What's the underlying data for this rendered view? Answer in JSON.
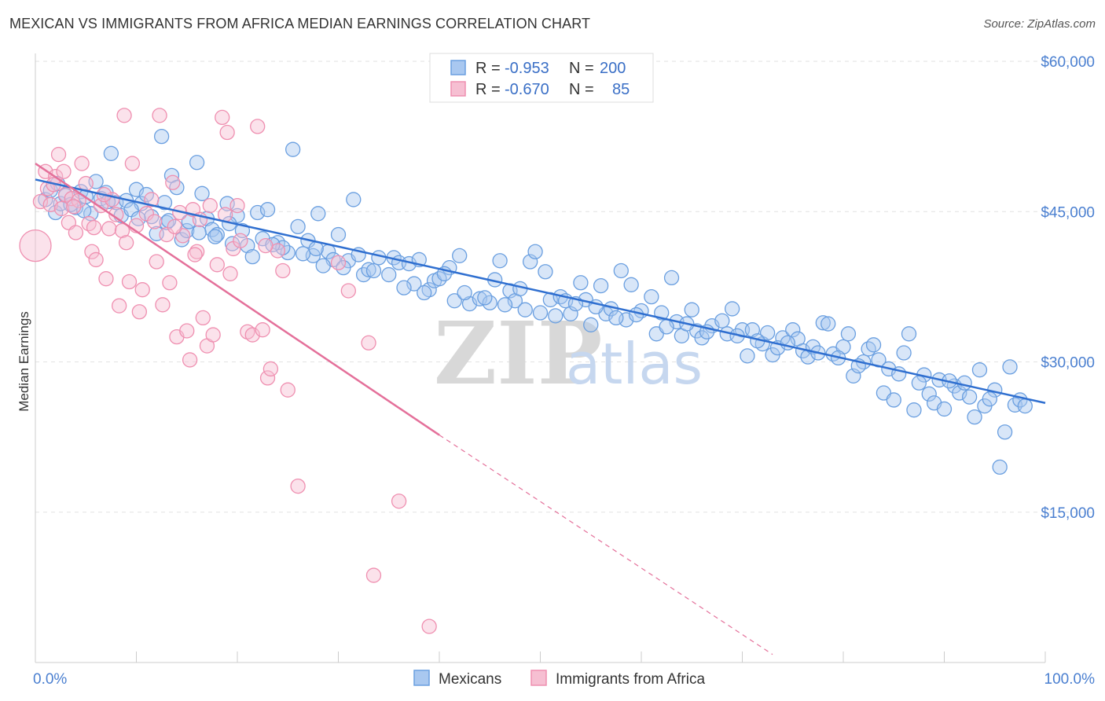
{
  "title": "MEXICAN VS IMMIGRANTS FROM AFRICA MEDIAN EARNINGS CORRELATION CHART",
  "source": "Source: ZipAtlas.com",
  "watermark": {
    "zip": "ZIP",
    "atlas": "atlas"
  },
  "colors": {
    "blue": "#6a9fe0",
    "blue_fill": "#a9c8f0",
    "blue_line": "#2f6fd0",
    "pink": "#ef8fb0",
    "pink_fill": "#f6bfd2",
    "pink_line": "#e4709a",
    "tick": "#4a7fd0"
  },
  "legend": {
    "rows": [
      {
        "r_label": "R =",
        "r_value": "-0.953",
        "n_label": "N =",
        "n_value": "200"
      },
      {
        "r_label": "R =",
        "r_value": "-0.670",
        "n_label": "N =",
        "n_value": "85"
      }
    ]
  },
  "bottom_legend": [
    "Mexicans",
    "Immigrants from Africa"
  ],
  "chart_data": {
    "type": "scatter",
    "title": "MEXICAN VS IMMIGRANTS FROM AFRICA MEDIAN EARNINGS CORRELATION CHART",
    "xlabel": "",
    "ylabel": "Median Earnings",
    "xlim": [
      0,
      100
    ],
    "ylim": [
      0,
      60000
    ],
    "x_tick_labels": [
      "0.0%",
      "100.0%"
    ],
    "y_ticks": [
      15000,
      30000,
      45000,
      60000
    ],
    "y_tick_labels": [
      "$15,000",
      "$30,000",
      "$45,000",
      "$60,000"
    ],
    "grid": true,
    "legend_position": "top-center",
    "series": [
      {
        "name": "Mexicans",
        "R": -0.953,
        "N": 200,
        "trend": {
          "x": [
            0,
            100
          ],
          "y": [
            48200,
            25900
          ]
        },
        "points": [
          [
            1,
            46200
          ],
          [
            1.5,
            47100
          ],
          [
            2,
            44900
          ],
          [
            2.5,
            45800
          ],
          [
            3,
            46600
          ],
          [
            4,
            45400
          ],
          [
            4.5,
            47000
          ],
          [
            5,
            46500
          ],
          [
            5.5,
            44800
          ],
          [
            6,
            48000
          ],
          [
            7,
            46900
          ],
          [
            7.5,
            50800
          ],
          [
            8,
            45900
          ],
          [
            8.5,
            44600
          ],
          [
            9,
            46100
          ],
          [
            10,
            47200
          ],
          [
            10.5,
            45800
          ],
          [
            11,
            46700
          ],
          [
            11.5,
            44500
          ],
          [
            12,
            42800
          ],
          [
            12.5,
            52500
          ],
          [
            13,
            43900
          ],
          [
            13.5,
            48600
          ],
          [
            14,
            47400
          ],
          [
            14.5,
            42200
          ],
          [
            15,
            43100
          ],
          [
            16,
            49900
          ],
          [
            16.5,
            46800
          ],
          [
            17,
            44300
          ],
          [
            17.5,
            43200
          ],
          [
            18,
            42700
          ],
          [
            19,
            45800
          ],
          [
            19.5,
            41800
          ],
          [
            20,
            44600
          ],
          [
            21,
            41600
          ],
          [
            22,
            44900
          ],
          [
            22.5,
            42300
          ],
          [
            23,
            45200
          ],
          [
            24,
            41900
          ],
          [
            25,
            40900
          ],
          [
            25.5,
            51200
          ],
          [
            26,
            43500
          ],
          [
            27,
            42100
          ],
          [
            27.5,
            40600
          ],
          [
            28,
            44800
          ],
          [
            29,
            41000
          ],
          [
            29.5,
            40200
          ],
          [
            30,
            42700
          ],
          [
            31,
            40100
          ],
          [
            31.5,
            46200
          ],
          [
            32,
            40700
          ],
          [
            32.5,
            38700
          ],
          [
            33,
            39200
          ],
          [
            34,
            40400
          ],
          [
            35,
            38700
          ],
          [
            35.5,
            40400
          ],
          [
            36,
            39900
          ],
          [
            37,
            39800
          ],
          [
            37.5,
            37800
          ],
          [
            38,
            40200
          ],
          [
            39,
            37200
          ],
          [
            39.5,
            38100
          ],
          [
            40,
            38300
          ],
          [
            41,
            39400
          ],
          [
            41.5,
            36100
          ],
          [
            42,
            40600
          ],
          [
            43,
            35800
          ],
          [
            44,
            36300
          ],
          [
            45,
            35900
          ],
          [
            45.5,
            38200
          ],
          [
            46,
            40100
          ],
          [
            47,
            37100
          ],
          [
            47.5,
            36100
          ],
          [
            48,
            37300
          ],
          [
            49,
            40000
          ],
          [
            49.5,
            41000
          ],
          [
            50,
            34900
          ],
          [
            50.5,
            39000
          ],
          [
            51,
            36200
          ],
          [
            52,
            36500
          ],
          [
            52.5,
            36100
          ],
          [
            53,
            34800
          ],
          [
            54,
            37900
          ],
          [
            54.5,
            36200
          ],
          [
            55,
            33700
          ],
          [
            56,
            37600
          ],
          [
            56.5,
            34800
          ],
          [
            57,
            35300
          ],
          [
            58,
            39100
          ],
          [
            58.5,
            34200
          ],
          [
            59,
            37700
          ],
          [
            60,
            35100
          ],
          [
            61,
            36500
          ],
          [
            61.5,
            32800
          ],
          [
            62,
            34900
          ],
          [
            63,
            38400
          ],
          [
            63.5,
            34000
          ],
          [
            64,
            32600
          ],
          [
            65,
            35200
          ],
          [
            65.5,
            33100
          ],
          [
            66,
            32400
          ],
          [
            67,
            33600
          ],
          [
            68,
            34100
          ],
          [
            68.5,
            32800
          ],
          [
            69,
            35300
          ],
          [
            70,
            33200
          ],
          [
            70.5,
            30600
          ],
          [
            71,
            33200
          ],
          [
            72,
            31800
          ],
          [
            72.5,
            32900
          ],
          [
            73,
            30700
          ],
          [
            74,
            32400
          ],
          [
            75,
            33200
          ],
          [
            75.5,
            32300
          ],
          [
            76,
            31100
          ],
          [
            76.5,
            30500
          ],
          [
            77,
            31500
          ],
          [
            78,
            33900
          ],
          [
            78.5,
            33800
          ],
          [
            79,
            30800
          ],
          [
            80,
            31500
          ],
          [
            80.5,
            32800
          ],
          [
            81,
            28600
          ],
          [
            82,
            30000
          ],
          [
            82.5,
            31300
          ],
          [
            83,
            31700
          ],
          [
            83.5,
            30200
          ],
          [
            84,
            26900
          ],
          [
            85,
            26200
          ],
          [
            86,
            30900
          ],
          [
            86.5,
            32800
          ],
          [
            87,
            25200
          ],
          [
            88,
            28700
          ],
          [
            88.5,
            26800
          ],
          [
            89,
            25900
          ],
          [
            89.5,
            28200
          ],
          [
            90,
            25300
          ],
          [
            91,
            27600
          ],
          [
            91.5,
            26900
          ],
          [
            92,
            27900
          ],
          [
            93,
            24500
          ],
          [
            93.5,
            29200
          ],
          [
            94,
            25600
          ],
          [
            95,
            27200
          ],
          [
            95.5,
            19500
          ],
          [
            96,
            23000
          ],
          [
            96.5,
            29500
          ],
          [
            97,
            25700
          ],
          [
            97.5,
            26200
          ],
          [
            98,
            25600
          ],
          [
            3.5,
            45700
          ],
          [
            6.5,
            46300
          ],
          [
            9.5,
            45200
          ],
          [
            13.2,
            44100
          ],
          [
            16.2,
            42900
          ],
          [
            19.2,
            43800
          ],
          [
            21.5,
            40500
          ],
          [
            24.5,
            41400
          ],
          [
            26.5,
            40800
          ],
          [
            28.5,
            39600
          ],
          [
            30.5,
            39400
          ],
          [
            33.5,
            39100
          ],
          [
            36.5,
            37400
          ],
          [
            38.5,
            36900
          ],
          [
            40.5,
            38800
          ],
          [
            42.5,
            36900
          ],
          [
            44.5,
            36400
          ],
          [
            46.5,
            35700
          ],
          [
            48.5,
            35200
          ],
          [
            51.5,
            34600
          ],
          [
            53.5,
            35800
          ],
          [
            55.5,
            35500
          ],
          [
            57.5,
            34400
          ],
          [
            59.5,
            34700
          ],
          [
            62.5,
            33500
          ],
          [
            64.5,
            33800
          ],
          [
            66.5,
            33000
          ],
          [
            69.5,
            32600
          ],
          [
            71.5,
            32100
          ],
          [
            73.5,
            31400
          ],
          [
            74.5,
            31900
          ],
          [
            77.5,
            30900
          ],
          [
            79.5,
            30400
          ],
          [
            81.5,
            29600
          ],
          [
            84.5,
            29300
          ],
          [
            85.5,
            28800
          ],
          [
            87.5,
            27900
          ],
          [
            90.5,
            28100
          ],
          [
            92.5,
            26500
          ],
          [
            94.5,
            26300
          ],
          [
            2.2,
            47800
          ],
          [
            4.8,
            45100
          ],
          [
            7.2,
            46000
          ],
          [
            10.2,
            44300
          ],
          [
            12.8,
            45900
          ],
          [
            15.2,
            44000
          ],
          [
            17.8,
            42500
          ],
          [
            20.5,
            43100
          ],
          [
            23.5,
            41700
          ],
          [
            27.8,
            41300
          ]
        ]
      },
      {
        "name": "Immigrants from Africa",
        "R": -0.67,
        "N": 85,
        "trend_solid": {
          "x": [
            0,
            40
          ],
          "y": [
            49800,
            22700
          ]
        },
        "trend_dashed": {
          "x": [
            40,
            73
          ],
          "y": [
            22700,
            800
          ]
        },
        "points": [
          [
            0,
            41600
          ],
          [
            0.5,
            46000
          ],
          [
            1,
            49000
          ],
          [
            1.2,
            47300
          ],
          [
            1.5,
            45700
          ],
          [
            2,
            48500
          ],
          [
            2.3,
            50700
          ],
          [
            2.6,
            45300
          ],
          [
            3,
            46700
          ],
          [
            3.3,
            43900
          ],
          [
            3.6,
            46300
          ],
          [
            4,
            42900
          ],
          [
            4.3,
            46100
          ],
          [
            4.6,
            49800
          ],
          [
            5,
            47800
          ],
          [
            5.3,
            43800
          ],
          [
            5.6,
            41000
          ],
          [
            6,
            40200
          ],
          [
            6.5,
            45600
          ],
          [
            7,
            38300
          ],
          [
            7.3,
            43300
          ],
          [
            7.6,
            46200
          ],
          [
            8,
            44700
          ],
          [
            8.3,
            35600
          ],
          [
            8.6,
            43100
          ],
          [
            9,
            41900
          ],
          [
            9.3,
            38000
          ],
          [
            9.6,
            49800
          ],
          [
            10,
            43600
          ],
          [
            10.3,
            35000
          ],
          [
            10.6,
            37200
          ],
          [
            11,
            44800
          ],
          [
            11.5,
            46200
          ],
          [
            12,
            40000
          ],
          [
            12.3,
            54600
          ],
          [
            12.6,
            35700
          ],
          [
            13,
            42700
          ],
          [
            13.3,
            37900
          ],
          [
            13.6,
            47900
          ],
          [
            14,
            32500
          ],
          [
            14.3,
            44900
          ],
          [
            14.6,
            42600
          ],
          [
            15,
            33100
          ],
          [
            15.3,
            30200
          ],
          [
            15.6,
            45200
          ],
          [
            16,
            41000
          ],
          [
            16.3,
            44200
          ],
          [
            16.6,
            34400
          ],
          [
            17,
            31600
          ],
          [
            17.3,
            45600
          ],
          [
            17.6,
            32700
          ],
          [
            18,
            39700
          ],
          [
            18.5,
            54400
          ],
          [
            19,
            52900
          ],
          [
            19.3,
            38800
          ],
          [
            19.6,
            41300
          ],
          [
            20,
            45600
          ],
          [
            21,
            33000
          ],
          [
            21.5,
            32700
          ],
          [
            22,
            53500
          ],
          [
            22.5,
            33200
          ],
          [
            23,
            28400
          ],
          [
            23.3,
            29300
          ],
          [
            24,
            41100
          ],
          [
            24.5,
            39100
          ],
          [
            25,
            27200
          ],
          [
            26,
            17600
          ],
          [
            30,
            39900
          ],
          [
            31,
            37100
          ],
          [
            33,
            31900
          ],
          [
            33.5,
            8700
          ],
          [
            36,
            16100
          ],
          [
            39,
            3600
          ],
          [
            8.8,
            54600
          ],
          [
            1.8,
            47700
          ],
          [
            2.8,
            49000
          ],
          [
            3.8,
            45500
          ],
          [
            5.8,
            43400
          ],
          [
            6.8,
            46700
          ],
          [
            11.8,
            44000
          ],
          [
            13.8,
            43500
          ],
          [
            15.8,
            40700
          ],
          [
            18.8,
            44700
          ],
          [
            20.3,
            42100
          ],
          [
            22.8,
            41600
          ]
        ]
      }
    ]
  }
}
